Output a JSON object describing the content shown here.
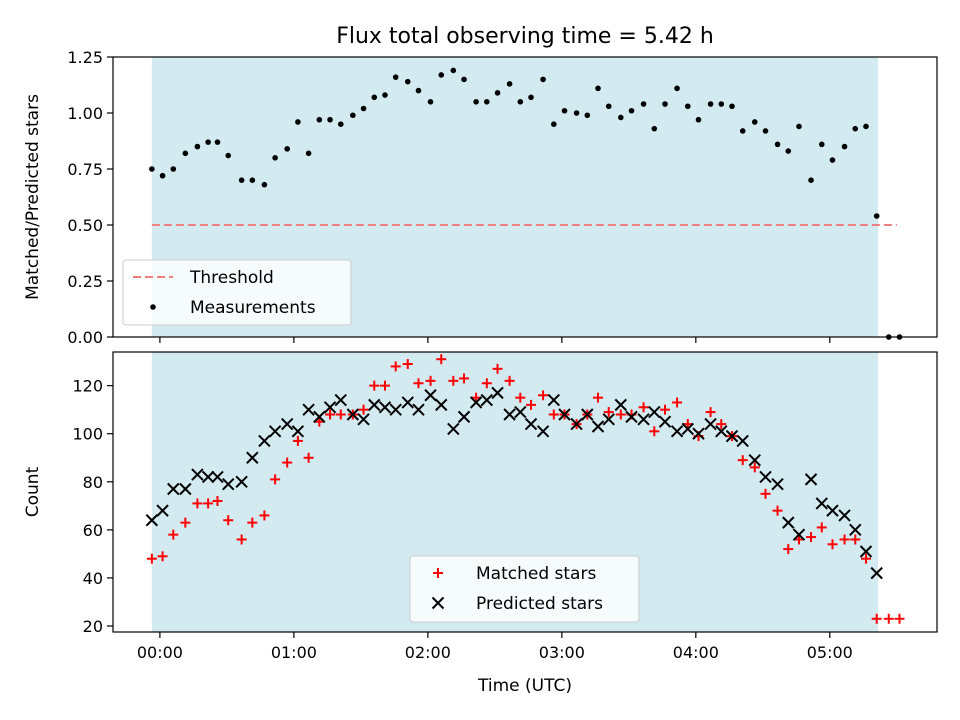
{
  "chart_data": {
    "title": "Flux total observing time = 5.42 h",
    "xlabel": "Time (UTC)",
    "x_ticks": [
      "00:00",
      "01:00",
      "02:00",
      "03:00",
      "04:00",
      "05:00"
    ],
    "x_range_hours": [
      -0.35,
      5.8
    ],
    "shaded_interval_hours": [
      -0.06,
      5.36
    ],
    "shade_color": "#d3eaf1",
    "panels": [
      {
        "type": "scatter",
        "ylabel": "Matched/Predicted stars",
        "ylim": [
          0,
          1.25
        ],
        "y_ticks": [
          "0.00",
          "0.25",
          "0.50",
          "0.75",
          "1.00",
          "1.25"
        ],
        "y_tick_values": [
          0,
          0.25,
          0.5,
          0.75,
          1.0,
          1.25
        ],
        "legend_position": "lower-left",
        "threshold": {
          "name": "Threshold",
          "y": 0.5,
          "x_range": [
            -0.06,
            5.5
          ],
          "color": "#f08080"
        },
        "series": [
          {
            "name": "Measurements",
            "marker": "dot",
            "color": "#000000",
            "x": [
              -0.06,
              0.02,
              0.1,
              0.19,
              0.28,
              0.36,
              0.43,
              0.51,
              0.61,
              0.69,
              0.78,
              0.86,
              0.95,
              1.03,
              1.11,
              1.19,
              1.27,
              1.35,
              1.44,
              1.52,
              1.6,
              1.68,
              1.76,
              1.85,
              1.93,
              2.02,
              2.1,
              2.19,
              2.27,
              2.36,
              2.44,
              2.52,
              2.61,
              2.69,
              2.77,
              2.86,
              2.94,
              3.02,
              3.11,
              3.19,
              3.27,
              3.35,
              3.44,
              3.52,
              3.61,
              3.69,
              3.77,
              3.86,
              3.94,
              4.02,
              4.11,
              4.19,
              4.27,
              4.35,
              4.44,
              4.52,
              4.61,
              4.69,
              4.77,
              4.86,
              4.94,
              5.02,
              5.11,
              5.19,
              5.27,
              5.35,
              5.44,
              5.52
            ],
            "y": [
              0.75,
              0.72,
              0.75,
              0.82,
              0.85,
              0.87,
              0.87,
              0.81,
              0.7,
              0.7,
              0.68,
              0.8,
              0.84,
              0.96,
              0.82,
              0.97,
              0.97,
              0.95,
              0.99,
              1.02,
              1.07,
              1.08,
              1.16,
              1.14,
              1.1,
              1.05,
              1.17,
              1.19,
              1.15,
              1.05,
              1.05,
              1.09,
              1.13,
              1.05,
              1.07,
              1.15,
              0.95,
              1.01,
              1.0,
              0.99,
              1.11,
              1.03,
              0.98,
              1.01,
              1.04,
              0.93,
              1.04,
              1.11,
              1.03,
              0.97,
              1.04,
              1.04,
              1.03,
              0.92,
              0.96,
              0.92,
              0.86,
              0.83,
              0.94,
              0.7,
              0.86,
              0.79,
              0.85,
              0.93,
              0.94,
              0.54,
              0.0,
              0.0
            ]
          }
        ]
      },
      {
        "type": "scatter",
        "ylabel": "Count",
        "ylim": [
          17.5,
          134
        ],
        "y_ticks": [
          "20",
          "40",
          "60",
          "80",
          "100",
          "120"
        ],
        "y_tick_values": [
          20,
          40,
          60,
          80,
          100,
          120
        ],
        "legend_position": "lower-center",
        "series": [
          {
            "name": "Matched stars",
            "marker": "plus",
            "color": "#ff0000",
            "x": [
              -0.06,
              0.02,
              0.1,
              0.19,
              0.28,
              0.36,
              0.43,
              0.51,
              0.61,
              0.69,
              0.78,
              0.86,
              0.95,
              1.03,
              1.11,
              1.19,
              1.27,
              1.35,
              1.44,
              1.52,
              1.6,
              1.68,
              1.76,
              1.85,
              1.93,
              2.02,
              2.1,
              2.19,
              2.27,
              2.36,
              2.44,
              2.52,
              2.61,
              2.69,
              2.77,
              2.86,
              2.94,
              3.02,
              3.11,
              3.19,
              3.27,
              3.35,
              3.44,
              3.52,
              3.61,
              3.69,
              3.77,
              3.86,
              3.94,
              4.02,
              4.11,
              4.19,
              4.27,
              4.35,
              4.44,
              4.52,
              4.61,
              4.69,
              4.77,
              4.86,
              4.94,
              5.02,
              5.11,
              5.19,
              5.27,
              5.35,
              5.44,
              5.52
            ],
            "y": [
              48,
              49,
              58,
              63,
              71,
              71,
              72,
              64,
              56,
              63,
              66,
              81,
              88,
              97,
              90,
              105,
              108,
              108,
              108,
              110,
              120,
              120,
              128,
              129,
              121,
              122,
              131,
              122,
              123,
              115,
              121,
              127,
              122,
              115,
              112,
              116,
              108,
              108,
              104,
              108,
              115,
              109,
              108,
              108,
              111,
              101,
              110,
              113,
              104,
              99,
              109,
              104,
              99,
              89,
              86,
              75,
              68,
              52,
              56,
              57,
              61,
              54,
              56,
              56,
              48,
              23,
              23,
              23
            ]
          },
          {
            "name": "Predicted stars",
            "marker": "x",
            "color": "#000000",
            "x": [
              -0.06,
              0.02,
              0.1,
              0.19,
              0.28,
              0.36,
              0.43,
              0.51,
              0.61,
              0.69,
              0.78,
              0.86,
              0.95,
              1.03,
              1.11,
              1.19,
              1.27,
              1.35,
              1.44,
              1.52,
              1.6,
              1.68,
              1.76,
              1.85,
              1.93,
              2.02,
              2.1,
              2.19,
              2.27,
              2.36,
              2.44,
              2.52,
              2.61,
              2.69,
              2.77,
              2.86,
              2.94,
              3.02,
              3.11,
              3.19,
              3.27,
              3.35,
              3.44,
              3.52,
              3.61,
              3.69,
              3.77,
              3.86,
              3.94,
              4.02,
              4.11,
              4.19,
              4.27,
              4.35,
              4.44,
              4.52,
              4.61,
              4.69,
              4.77,
              4.86,
              4.94,
              5.02,
              5.11,
              5.19,
              5.27,
              5.35
            ],
            "y": [
              64,
              68,
              77,
              77,
              83,
              82,
              82,
              79,
              80,
              90,
              97,
              101,
              104,
              101,
              110,
              107,
              111,
              114,
              108,
              106,
              112,
              111,
              110,
              113,
              110,
              116,
              112,
              102,
              107,
              113,
              114,
              117,
              108,
              109,
              104,
              101,
              114,
              108,
              104,
              108,
              103,
              106,
              112,
              107,
              106,
              109,
              105,
              101,
              102,
              100,
              104,
              101,
              99,
              97,
              89,
              82,
              79,
              63,
              58,
              81,
              71,
              68,
              66,
              60,
              51,
              42
            ]
          }
        ]
      }
    ]
  }
}
